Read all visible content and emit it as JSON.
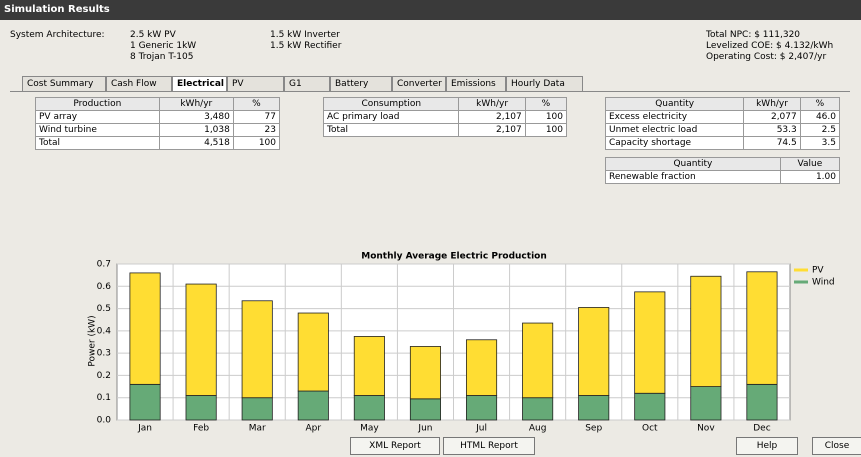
{
  "window_title": "Simulation Results",
  "architecture": {
    "label": "System Architecture:",
    "col1": [
      "2.5 kW PV",
      "1 Generic 1kW",
      "8 Trojan T-105"
    ],
    "col2": [
      "1.5 kW Inverter",
      "1.5 kW Rectifier"
    ]
  },
  "summary": [
    "Total NPC: $ 111,320",
    "Levelized COE: $ 4.132/kWh",
    "Operating Cost: $ 2,407/yr"
  ],
  "tabs": [
    "Cost Summary",
    "Cash Flow",
    "Electrical",
    "PV",
    "G1",
    "Battery",
    "Converter",
    "Emissions",
    "Hourly Data"
  ],
  "tables": [
    {
      "headers": [
        "Production",
        "kWh/yr",
        "%"
      ],
      "rows": [
        [
          "PV array",
          "3,480",
          "77"
        ],
        [
          "Wind turbine",
          "1,038",
          "23"
        ],
        [
          "Total",
          "4,518",
          "100"
        ]
      ]
    },
    {
      "headers": [
        "Consumption",
        "kWh/yr",
        "%"
      ],
      "rows": [
        [
          "AC primary load",
          "2,107",
          "100"
        ],
        [
          "Total",
          "2,107",
          "100"
        ]
      ]
    },
    {
      "headers": [
        "Quantity",
        "kWh/yr",
        "%"
      ],
      "rows": [
        [
          "Excess electricity",
          "2,077",
          "46.0"
        ],
        [
          "Unmet electric load",
          "53.3",
          "2.5"
        ],
        [
          "Capacity shortage",
          "74.5",
          "3.5"
        ]
      ]
    },
    {
      "headers": [
        "Quantity",
        "Value"
      ],
      "rows": [
        [
          "Renewable fraction",
          "1.00"
        ]
      ]
    }
  ],
  "buttons": [
    "XML Report",
    "HTML Report",
    "Help",
    "Close"
  ],
  "chart_data": {
    "type": "stacked_bar",
    "title": "Monthly Average Electric Production",
    "y_label": "Power (kW)",
    "categories": [
      "Jan",
      "Feb",
      "Mar",
      "Apr",
      "May",
      "Jun",
      "Jul",
      "Aug",
      "Sep",
      "Oct",
      "Nov",
      "Dec"
    ],
    "series": [
      {
        "name": "PV",
        "color": "#ffdd33",
        "values": [
          0.5,
          0.5,
          0.435,
          0.35,
          0.265,
          0.235,
          0.25,
          0.335,
          0.395,
          0.455,
          0.495,
          0.505
        ]
      },
      {
        "name": "Wind",
        "color": "#66aa77",
        "values": [
          0.16,
          0.11,
          0.1,
          0.13,
          0.11,
          0.095,
          0.11,
          0.1,
          0.11,
          0.12,
          0.15,
          0.16
        ]
      }
    ],
    "stack_order": "bottom_last_series",
    "ylim": [
      0,
      0.7
    ],
    "yticks": [
      {
        "value": 0,
        "label": "0.0"
      },
      0.1,
      0.2,
      0.3,
      0.4,
      0.5,
      0.6,
      0.7
    ],
    "grid": true
  }
}
